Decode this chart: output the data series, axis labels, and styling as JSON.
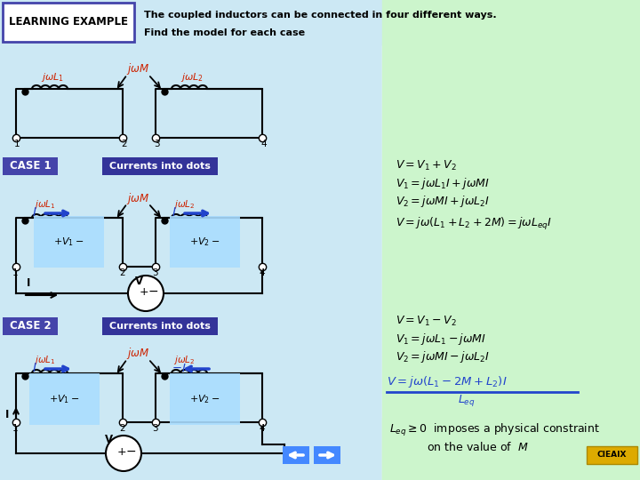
{
  "bg_light_blue": "#cce8f4",
  "bg_white": "#ffffff",
  "bg_light_green": "#ccf5cc",
  "header_blue": "#4444aa",
  "red_color": "#cc2200",
  "blue_color": "#2244cc",
  "black": "#000000",
  "arrow_blue": "#2244cc",
  "gold_color": "#ddaa00",
  "case_bg": "#4444aa",
  "currents_bg": "#333399",
  "title_line1": "The coupled inductors can be connected in four different ways.",
  "title_line2": "Find the model for each case",
  "header_label": "LEARNING EXAMPLE",
  "case1_label": "CASE 1",
  "case2_label": "CASE 2",
  "currents_label": "Currents into dots"
}
